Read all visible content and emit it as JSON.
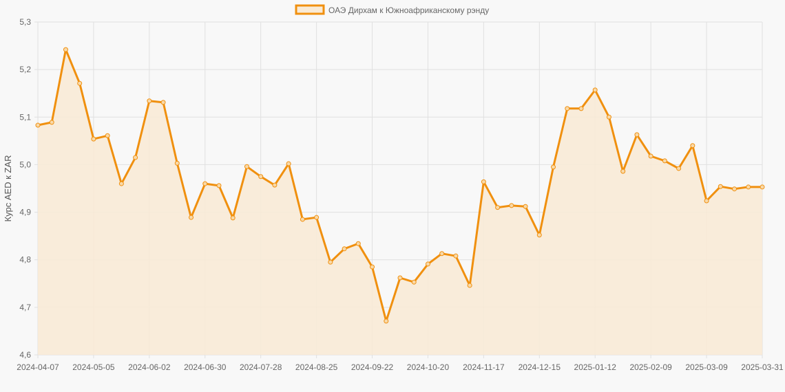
{
  "chart_data": {
    "type": "area",
    "legend": {
      "label": "ОАЭ Дирхам к Южноафриканскому рэнду",
      "position": "top"
    },
    "ylabel": "Курс AED к ZAR",
    "xlabel": "",
    "ylim": [
      4.6,
      5.3
    ],
    "yticks": [
      "4,6",
      "4,7",
      "4,8",
      "4,9",
      "5,0",
      "5,1",
      "5,2",
      "5,3"
    ],
    "grid": true,
    "colors": {
      "line": "#f0900f",
      "fill": "#f9ead5"
    },
    "categories": [
      "2024-04-07",
      "2024-04-14",
      "2024-04-21",
      "2024-04-28",
      "2024-05-05",
      "2024-05-12",
      "2024-05-19",
      "2024-05-26",
      "2024-06-02",
      "2024-06-09",
      "2024-06-16",
      "2024-06-23",
      "2024-06-30",
      "2024-07-07",
      "2024-07-14",
      "2024-07-21",
      "2024-07-28",
      "2024-08-04",
      "2024-08-11",
      "2024-08-18",
      "2024-08-25",
      "2024-09-01",
      "2024-09-08",
      "2024-09-15",
      "2024-09-22",
      "2024-09-29",
      "2024-10-06",
      "2024-10-13",
      "2024-10-20",
      "2024-10-27",
      "2024-11-03",
      "2024-11-10",
      "2024-11-17",
      "2024-11-24",
      "2024-12-01",
      "2024-12-08",
      "2024-12-15",
      "2024-12-22",
      "2024-12-29",
      "2025-01-05",
      "2025-01-12",
      "2025-01-19",
      "2025-01-26",
      "2025-02-02",
      "2025-02-09",
      "2025-02-16",
      "2025-02-23",
      "2025-03-02",
      "2025-03-09",
      "2025-03-16",
      "2025-03-23",
      "2025-03-30",
      "2025-03-31"
    ],
    "xtick_labels": [
      "2024-04-07",
      "2024-05-05",
      "2024-06-02",
      "2024-06-30",
      "2024-07-28",
      "2024-08-25",
      "2024-09-22",
      "2024-10-20",
      "2024-11-17",
      "2024-12-15",
      "2025-01-12",
      "2025-02-09",
      "2025-03-09",
      "2025-03-31"
    ],
    "series": [
      {
        "name": "ОАЭ Дирхам к Южноафриканскому рэнду",
        "values": [
          5.083,
          5.089,
          5.242,
          5.171,
          5.054,
          5.061,
          4.96,
          5.015,
          5.134,
          5.131,
          5.003,
          4.889,
          4.96,
          4.956,
          4.888,
          4.996,
          4.975,
          4.957,
          5.002,
          4.885,
          4.889,
          4.795,
          4.823,
          4.834,
          4.785,
          4.671,
          4.762,
          4.753,
          4.791,
          4.813,
          4.808,
          4.746,
          4.964,
          4.91,
          4.914,
          4.912,
          4.852,
          4.995,
          5.118,
          5.118,
          5.157,
          5.1,
          4.986,
          5.063,
          5.018,
          5.008,
          4.992,
          5.04,
          4.924,
          4.954,
          4.949,
          4.953,
          4.953
        ]
      }
    ]
  }
}
